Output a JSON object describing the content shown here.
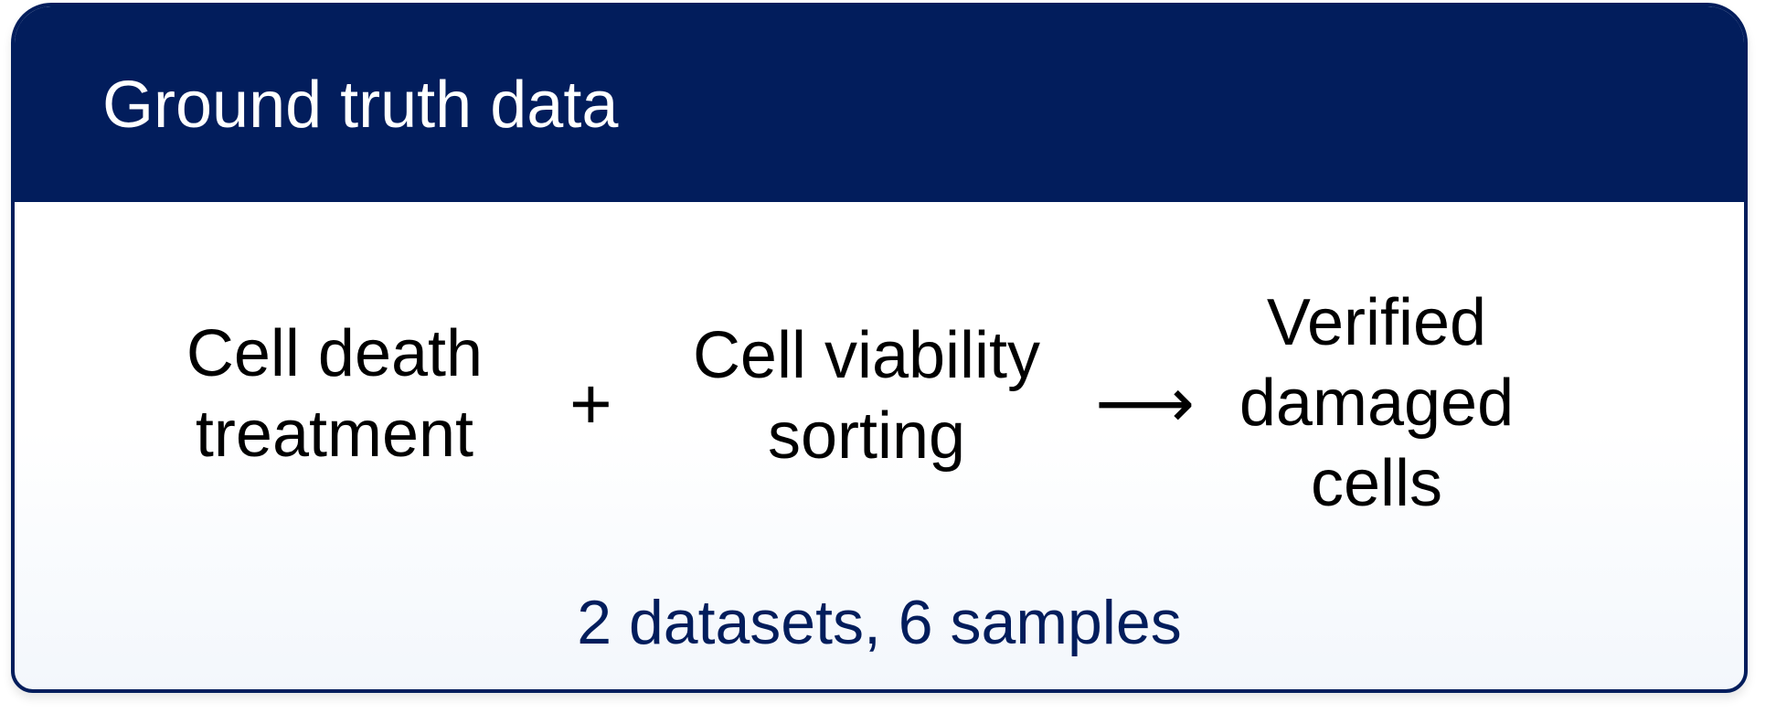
{
  "panel": {
    "title": "Ground truth data",
    "steps": [
      {
        "label": "Cell death\ntreatment"
      },
      {
        "label": "Cell viability\nsorting"
      },
      {
        "label": "Verified\ndamaged\ncells"
      }
    ],
    "operators": {
      "plus": "+",
      "arrow": "⟶"
    },
    "summary": "2 datasets, 6 samples",
    "colors": {
      "header_background": "#021d5c",
      "summary_text": "#021d5c",
      "body_text": "#000000"
    }
  }
}
